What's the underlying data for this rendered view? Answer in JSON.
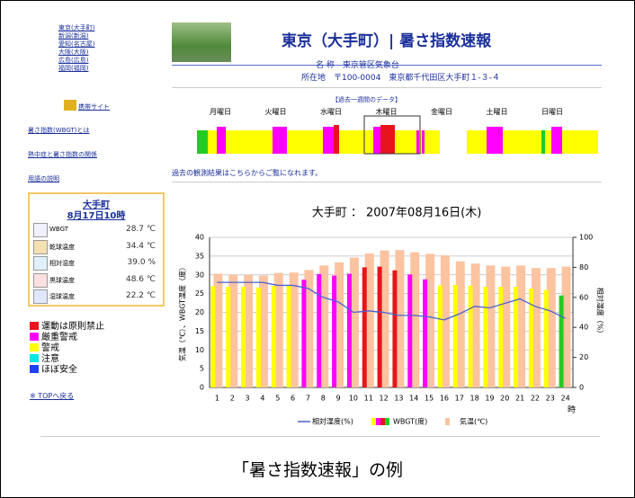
{
  "sidebar": {
    "stations": [
      "東京(大手町)",
      "新潟(新潟)",
      "愛知(名古屋)",
      "大阪(大阪)",
      "広島(広島)",
      "福岡(福岡)"
    ],
    "mobile": "携帯サイト",
    "links": [
      "暑さ指数(WBGT)とは",
      "熱中症と暑さ指数の関係",
      "用語の説明"
    ],
    "latest": {
      "station": "大手町",
      "time": "8月17日10時",
      "rows": [
        {
          "label": "WBGT",
          "value": "28.7 ℃"
        },
        {
          "label": "乾球温度",
          "value": "34.4 ℃"
        },
        {
          "label": "相対湿度",
          "value": "39.0 %"
        },
        {
          "label": "黒球温度",
          "value": "48.6 ℃"
        },
        {
          "label": "湿球温度",
          "value": "22.2 ℃"
        }
      ]
    },
    "legend": [
      {
        "label": "運動は原則禁止",
        "color": "#e8141c"
      },
      {
        "label": "厳重警戒",
        "color": "#ff00ff"
      },
      {
        "label": "警戒",
        "color": "#ffff00"
      },
      {
        "label": "注意",
        "color": "#00e5e5"
      },
      {
        "label": "ほぼ安全",
        "color": "#2040ff"
      }
    ],
    "top_link": "※ TOPへ戻る"
  },
  "header": {
    "title": "東京（大手町）| 暑さ指数速報",
    "name_line": "名 称　東京管区気象台",
    "address_line": "所在地　〒100-0004　東京都千代田区大手町１-３-４"
  },
  "week": {
    "title": "【過去一週間のデータ】",
    "days": [
      "月曜日",
      "火曜日",
      "水曜日",
      "木曜日",
      "金曜日",
      "土曜日",
      "日曜日"
    ]
  },
  "past_note": "過去の観測結果はこちらからご覧になれます。",
  "chart_data": {
    "type": "bar",
    "title": "大手町 ： 2007年08月16日(木)",
    "categories": [
      "1",
      "2",
      "3",
      "4",
      "5",
      "6",
      "7",
      "8",
      "9",
      "10",
      "11",
      "12",
      "13",
      "14",
      "15",
      "16",
      "17",
      "18",
      "19",
      "20",
      "21",
      "22",
      "23",
      "24"
    ],
    "x_label": "時",
    "y_label": "気温（℃）、WBGT温度（度）",
    "y2_label": "相対湿度（%）",
    "series": [
      {
        "name": "気温(℃)",
        "color": "#fbc3a0",
        "values": [
          30.3,
          30,
          30,
          29.8,
          30.5,
          30.6,
          31.3,
          32.5,
          33.3,
          34.6,
          35.7,
          36.5,
          36.6,
          36,
          35.6,
          35.2,
          33.6,
          33,
          32.5,
          32.2,
          32.5,
          31.8,
          31.8,
          32.2
        ]
      },
      {
        "name": "WBGT(度)",
        "colors": [
          "#ffff00",
          "#ffff00",
          "#ffff00",
          "#ffff00",
          "#ffff00",
          "#ffff00",
          "#ff00ff",
          "#ff00ff",
          "#ff00ff",
          "#ff00ff",
          "#e8141c",
          "#e8141c",
          "#e8141c",
          "#ff00ff",
          "#ff00ff",
          "#ffff00",
          "#ffff00",
          "#ffff00",
          "#ffff00",
          "#ffff00",
          "#ffff00",
          "#ffff00",
          "#ffff00",
          "#22cc22"
        ],
        "values": [
          27,
          26.8,
          26.8,
          26.6,
          27,
          27.2,
          28.7,
          30.2,
          29.8,
          30.3,
          32,
          32.2,
          31.2,
          30.1,
          28.8,
          27.2,
          27.3,
          27.1,
          26.8,
          26.8,
          26.8,
          26.3,
          26,
          24.5
        ]
      },
      {
        "name": "相対湿度(%)",
        "type": "line",
        "axis": "y2",
        "color": "#4a60d0",
        "values": [
          70,
          70,
          70,
          70,
          68,
          68,
          66,
          60,
          57,
          50,
          51,
          50,
          48,
          48,
          47,
          45,
          49,
          54,
          53,
          56,
          59,
          54,
          51,
          46
        ]
      }
    ],
    "ylim": [
      0,
      40
    ],
    "yticks": [
      0,
      5,
      10,
      15,
      20,
      25,
      30,
      35,
      40
    ],
    "y2lim": [
      0,
      100
    ],
    "y2ticks": [
      0,
      20,
      40,
      60,
      80,
      100
    ]
  },
  "caption": "「暑さ指数速報」の例"
}
